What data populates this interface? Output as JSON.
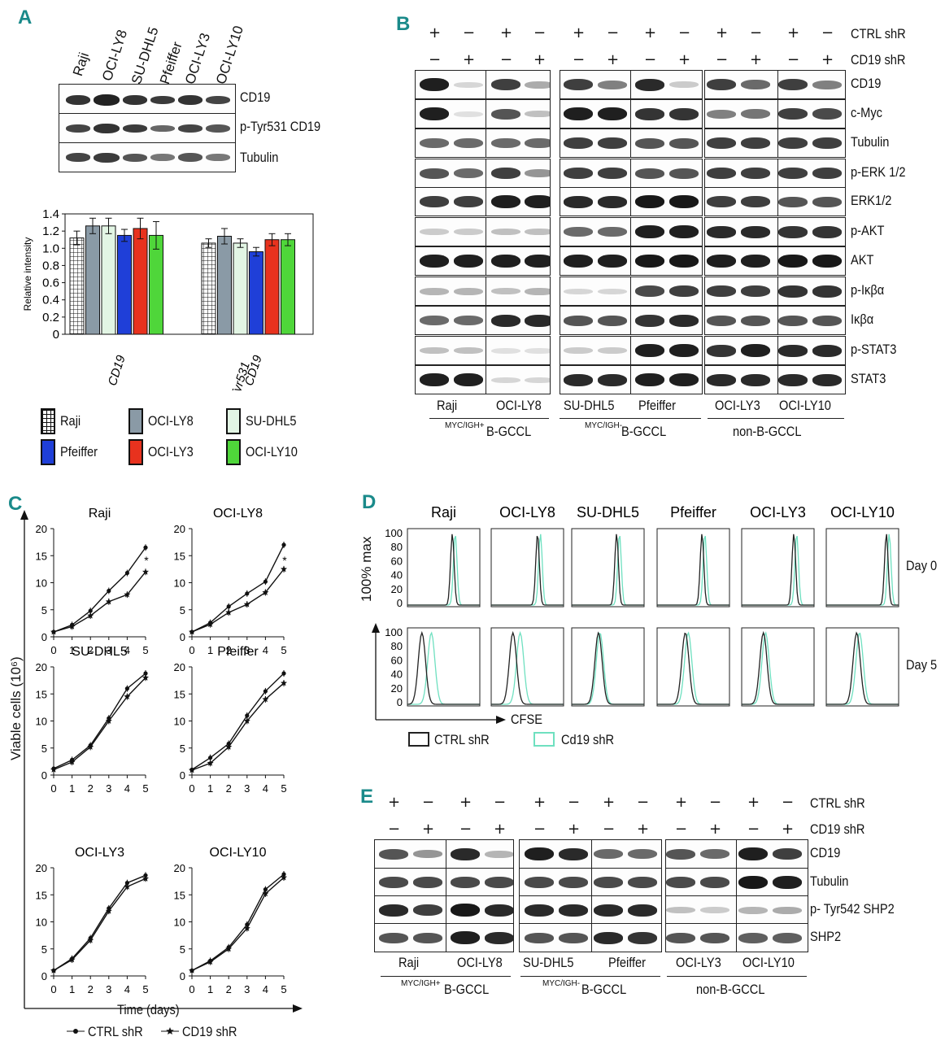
{
  "panels": {
    "A": "A",
    "B": "B",
    "C": "C",
    "D": "D",
    "E": "E"
  },
  "panelA": {
    "lanes": [
      "Raji",
      "OCI-LY8",
      "SU-DHL5",
      "Pfeiffer",
      "OCI-LY3",
      "OCI-LY10"
    ],
    "rows": [
      "CD19",
      "p-Tyr531 CD19",
      "Tubulin"
    ]
  },
  "chart_data": [
    {
      "type": "bar",
      "ylabel": "Relative intensity",
      "ylim": [
        0,
        1.4
      ],
      "yticks": [
        "0",
        "0.2",
        "0.4",
        "0.6",
        "0.8",
        "1.0",
        "1.2",
        "1.4"
      ],
      "groups": [
        "CD19",
        "p-Tyr531 CD19"
      ],
      "series": [
        {
          "name": "Raji",
          "color": "#ffffff",
          "pattern": "grid",
          "values": [
            1.12,
            1.06
          ],
          "errors": [
            0.08,
            0.05
          ]
        },
        {
          "name": "OCI-LY8",
          "color": "#8a9aa6",
          "values": [
            1.26,
            1.14
          ],
          "errors": [
            0.09,
            0.09
          ]
        },
        {
          "name": "SU-DHL5",
          "color": "#e2f5e4",
          "values": [
            1.26,
            1.06
          ],
          "errors": [
            0.09,
            0.05
          ]
        },
        {
          "name": "Pfeiffer",
          "color": "#1f3fd8",
          "values": [
            1.15,
            0.96
          ],
          "errors": [
            0.07,
            0.05
          ]
        },
        {
          "name": "OCI-LY3",
          "color": "#e8321e",
          "values": [
            1.23,
            1.1
          ],
          "errors": [
            0.12,
            0.07
          ]
        },
        {
          "name": "OCI-LY10",
          "color": "#4fd63a",
          "values": [
            1.15,
            1.1
          ],
          "errors": [
            0.16,
            0.07
          ]
        }
      ]
    },
    {
      "type": "line",
      "title": "Raji",
      "xlim": [
        0,
        5
      ],
      "ylim": [
        0,
        20
      ],
      "xticks": [
        "0",
        "1",
        "2",
        "3",
        "4",
        "5"
      ],
      "yticks": [
        "0",
        "5",
        "10",
        "15",
        "20"
      ],
      "x": [
        0,
        1,
        2,
        3,
        4,
        5
      ],
      "series": [
        {
          "name": "CTRL shR",
          "values": [
            0.9,
            2.2,
            4.8,
            8.5,
            11.8,
            16.5
          ]
        },
        {
          "name": "CD19 shR",
          "values": [
            0.9,
            1.9,
            3.9,
            6.5,
            7.8,
            12
          ]
        }
      ],
      "annotation": "*"
    },
    {
      "type": "line",
      "title": "OCI-LY8",
      "xlim": [
        0,
        5
      ],
      "ylim": [
        0,
        20
      ],
      "xticks": [
        "0",
        "1",
        "2",
        "3",
        "4",
        "5"
      ],
      "yticks": [
        "0",
        "5",
        "10",
        "15",
        "20"
      ],
      "x": [
        0,
        1,
        2,
        3,
        4,
        5
      ],
      "series": [
        {
          "name": "CTRL shR",
          "values": [
            0.9,
            2.6,
            5.6,
            8.0,
            10.2,
            17.0
          ]
        },
        {
          "name": "CD19 shR",
          "values": [
            0.9,
            2.3,
            4.5,
            6.0,
            8.2,
            12.5
          ]
        }
      ],
      "annotation": "*"
    },
    {
      "type": "line",
      "title": "SU-DHL5",
      "xlim": [
        0,
        5
      ],
      "ylim": [
        0,
        20
      ],
      "xticks": [
        "0",
        "1",
        "2",
        "3",
        "4",
        "5"
      ],
      "yticks": [
        "0",
        "5",
        "10",
        "15",
        "20"
      ],
      "x": [
        0,
        1,
        2,
        3,
        4,
        5
      ],
      "series": [
        {
          "name": "CTRL shR",
          "values": [
            1.2,
            2.8,
            5.5,
            10.5,
            16.0,
            18.8
          ]
        },
        {
          "name": "CD19 shR",
          "values": [
            1.0,
            2.4,
            5.2,
            10.0,
            14.5,
            18.0
          ]
        }
      ]
    },
    {
      "type": "line",
      "title": "Pfeiffer",
      "xlim": [
        0,
        5
      ],
      "ylim": [
        0,
        20
      ],
      "xticks": [
        "0",
        "1",
        "2",
        "3",
        "4",
        "5"
      ],
      "yticks": [
        "0",
        "5",
        "10",
        "15",
        "20"
      ],
      "x": [
        0,
        1,
        2,
        3,
        4,
        5
      ],
      "series": [
        {
          "name": "CTRL shR",
          "values": [
            1.0,
            3.2,
            5.8,
            11.0,
            15.5,
            18.8
          ]
        },
        {
          "name": "CD19 shR",
          "values": [
            0.9,
            2.2,
            5.2,
            10.0,
            14.0,
            17.0
          ]
        }
      ]
    },
    {
      "type": "line",
      "title": "OCI-LY3",
      "xlim": [
        0,
        5
      ],
      "ylim": [
        0,
        20
      ],
      "xticks": [
        "0",
        "1",
        "2",
        "3",
        "4",
        "5"
      ],
      "yticks": [
        "0",
        "5",
        "10",
        "15",
        "20"
      ],
      "x": [
        0,
        1,
        2,
        3,
        4,
        5
      ],
      "series": [
        {
          "name": "CTRL shR",
          "values": [
            1.0,
            3.2,
            7.0,
            12.5,
            17.2,
            18.6
          ]
        },
        {
          "name": "CD19 shR",
          "values": [
            1.0,
            3.0,
            6.6,
            12.0,
            16.5,
            18.0
          ]
        }
      ]
    },
    {
      "type": "line",
      "title": "OCI-LY10",
      "xlim": [
        0,
        5
      ],
      "ylim": [
        0,
        20
      ],
      "xticks": [
        "0",
        "1",
        "2",
        "3",
        "4",
        "5"
      ],
      "yticks": [
        "0",
        "5",
        "10",
        "15",
        "20"
      ],
      "x": [
        0,
        1,
        2,
        3,
        4,
        5
      ],
      "series": [
        {
          "name": "CTRL shR",
          "values": [
            1.0,
            2.8,
            5.3,
            9.5,
            16.0,
            18.8
          ]
        },
        {
          "name": "CD19 shR",
          "values": [
            1.0,
            2.6,
            5.0,
            8.8,
            15.2,
            18.2
          ]
        }
      ]
    }
  ],
  "panelB": {
    "ctrl_label": "CTRL shR",
    "cd19_label": "CD19 shR",
    "ctrl_signs": [
      "+",
      "−",
      "+",
      "−",
      "+",
      "−",
      "+",
      "−",
      "+",
      "−",
      "+",
      "−"
    ],
    "cd19_signs": [
      "−",
      "+",
      "−",
      "+",
      "−",
      "+",
      "−",
      "+",
      "−",
      "+",
      "−",
      "+"
    ],
    "rows": [
      "CD19",
      "c-Myc",
      "Tubulin",
      "p-ERK 1/2",
      "ERK1/2",
      "p-AKT",
      "AKT",
      "p-Iκβα",
      "Iκβα",
      "p-STAT3",
      "STAT3"
    ],
    "cells": [
      "Raji",
      "OCI-LY8",
      "SU-DHL5",
      "Pfeiffer",
      "OCI-LY3",
      "OCI-LY10"
    ],
    "group1_sup": "MYC/IGH+",
    "group1": "B-GCCL",
    "group2_sup": "MYC/IGH-",
    "group2": "B-GCCL",
    "group3": "non-B-GCCL"
  },
  "panelC": {
    "ylabel": "Viable cells (10⁶)",
    "xlabel": "Time (days)",
    "legend_ctrl": "CTRL shR",
    "legend_cd19": "CD19 shR"
  },
  "panelD": {
    "cells": [
      "Raji",
      "OCI-LY8",
      "SU-DHL5",
      "Pfeiffer",
      "OCI-LY3",
      "OCI-LY10"
    ],
    "ylabel": "100% max",
    "xlabel": "CFSE",
    "day0": "Day 0",
    "day5": "Day 5",
    "yticks": [
      "100",
      "80",
      "60",
      "40",
      "20",
      "0"
    ],
    "legend_ctrl": "CTRL shR",
    "legend_cd19": "Cd19 shR",
    "ctrl_color": "#222222",
    "cd19_color": "#6fe0c0"
  },
  "panelE": {
    "ctrl_label": "CTRL shR",
    "cd19_label": "CD19 shR",
    "ctrl_signs": [
      "+",
      "−",
      "+",
      "−",
      "+",
      "−",
      "+",
      "−",
      "+",
      "−",
      "+",
      "−"
    ],
    "cd19_signs": [
      "−",
      "+",
      "−",
      "+",
      "−",
      "+",
      "−",
      "+",
      "−",
      "+",
      "−",
      "+"
    ],
    "rows": [
      "CD19",
      "Tubulin",
      "p- Tyr542 SHP2",
      "SHP2"
    ],
    "cells": [
      "Raji",
      "OCI-LY8",
      "SU-DHL5",
      "Pfeiffer",
      "OCI-LY3",
      "OCI-LY10"
    ],
    "group1_sup": "MYC/IGH+",
    "group1": "B-GCCL",
    "group2_sup": "MYC/IGH-",
    "group2": "B-GCCL",
    "group3": "non-B-GCCL"
  }
}
